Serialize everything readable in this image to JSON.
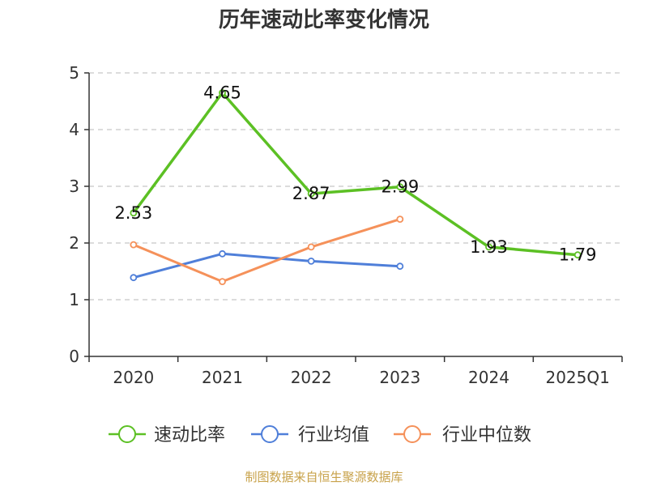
{
  "chart_data": {
    "type": "line",
    "title": "历年速动比率变化情况",
    "categories": [
      "2020",
      "2021",
      "2022",
      "2023",
      "2024",
      "2025Q1"
    ],
    "ylim": [
      0,
      5
    ],
    "yticks": [
      "0",
      "1",
      "2",
      "3",
      "4",
      "5"
    ],
    "grid": true,
    "legend_position": "bottom",
    "series": [
      {
        "name": "速动比率",
        "color": "#5cc024",
        "values": [
          2.53,
          4.65,
          2.87,
          2.99,
          1.93,
          1.79
        ],
        "labels": [
          "2.53",
          "4.65",
          "2.87",
          "2.99",
          "1.93",
          "1.79"
        ]
      },
      {
        "name": "行业均值",
        "color": "#4f7fd9",
        "values": [
          1.39,
          1.81,
          1.68,
          1.59,
          null,
          null
        ]
      },
      {
        "name": "行业中位数",
        "color": "#f5915a",
        "values": [
          1.97,
          1.32,
          1.93,
          2.42,
          null,
          null
        ]
      }
    ]
  },
  "footer": {
    "source": "制图数据来自恒生聚源数据库"
  }
}
